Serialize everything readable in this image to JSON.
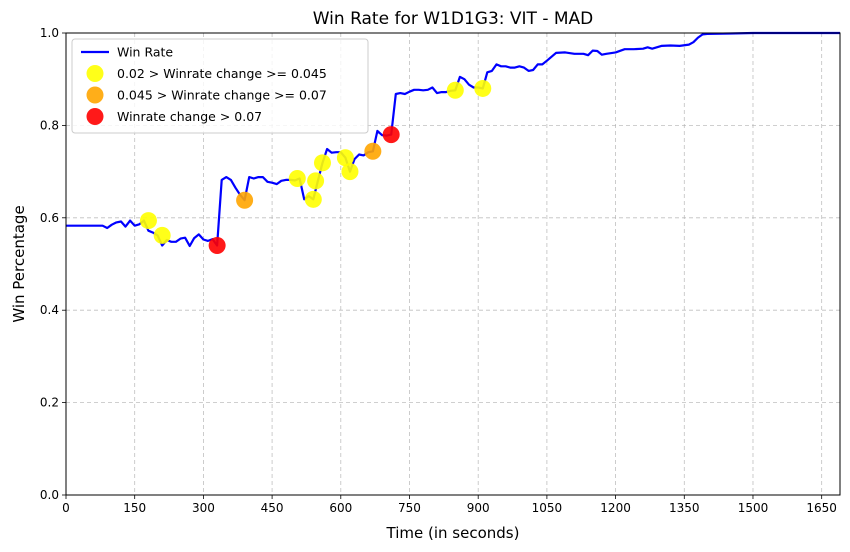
{
  "chart_data": {
    "type": "line",
    "title": "Win Rate for W1D1G3: VIT - MAD",
    "xlabel": "Time (in seconds)",
    "ylabel": "Win Percentage",
    "xlim": [
      0,
      1690
    ],
    "ylim": [
      0,
      1.0
    ],
    "xticks": [
      0,
      150,
      300,
      450,
      600,
      750,
      900,
      1050,
      1200,
      1350,
      1500,
      1650
    ],
    "yticks": [
      0.0,
      0.2,
      0.4,
      0.6,
      0.8,
      1.0
    ],
    "xtick_labels": [
      "0",
      "150",
      "300",
      "450",
      "600",
      "750",
      "900",
      "1050",
      "1200",
      "1350",
      "1500",
      "1650"
    ],
    "ytick_labels": [
      "0.0",
      "0.2",
      "0.4",
      "0.6",
      "0.8",
      "1.0"
    ],
    "grid": true,
    "legend_position": "top-left",
    "series": [
      {
        "name": "Win Rate",
        "color": "#0000ff",
        "x": [
          0,
          20,
          40,
          60,
          80,
          90,
          100,
          110,
          120,
          130,
          140,
          150,
          160,
          170,
          180,
          190,
          200,
          210,
          220,
          230,
          240,
          250,
          260,
          270,
          280,
          290,
          300,
          310,
          320,
          330,
          340,
          350,
          360,
          370,
          380,
          390,
          400,
          410,
          420,
          430,
          440,
          450,
          460,
          470,
          480,
          490,
          500,
          510,
          520,
          530,
          540,
          550,
          560,
          570,
          580,
          590,
          600,
          610,
          620,
          630,
          640,
          650,
          660,
          670,
          680,
          690,
          700,
          710,
          720,
          730,
          740,
          750,
          760,
          770,
          780,
          790,
          800,
          810,
          820,
          830,
          840,
          850,
          860,
          870,
          880,
          890,
          900,
          910,
          920,
          930,
          940,
          950,
          960,
          970,
          980,
          990,
          1000,
          1010,
          1020,
          1030,
          1040,
          1050,
          1070,
          1090,
          1110,
          1130,
          1140,
          1150,
          1160,
          1170,
          1180,
          1200,
          1220,
          1240,
          1260,
          1270,
          1280,
          1300,
          1320,
          1340,
          1360,
          1370,
          1380,
          1390,
          1400,
          1450,
          1500,
          1550,
          1600,
          1650,
          1690
        ],
        "y": [
          0.583,
          0.583,
          0.583,
          0.583,
          0.583,
          0.578,
          0.585,
          0.59,
          0.592,
          0.581,
          0.594,
          0.583,
          0.586,
          0.594,
          0.572,
          0.568,
          0.562,
          0.54,
          0.552,
          0.548,
          0.548,
          0.555,
          0.557,
          0.539,
          0.556,
          0.564,
          0.553,
          0.55,
          0.554,
          0.54,
          0.682,
          0.688,
          0.682,
          0.665,
          0.65,
          0.638,
          0.688,
          0.685,
          0.688,
          0.688,
          0.678,
          0.676,
          0.673,
          0.68,
          0.682,
          0.682,
          0.681,
          0.685,
          0.64,
          0.647,
          0.64,
          0.68,
          0.719,
          0.749,
          0.741,
          0.742,
          0.742,
          0.73,
          0.7,
          0.727,
          0.737,
          0.735,
          0.742,
          0.744,
          0.788,
          0.779,
          0.778,
          0.78,
          0.868,
          0.87,
          0.868,
          0.873,
          0.877,
          0.877,
          0.876,
          0.877,
          0.882,
          0.87,
          0.872,
          0.872,
          0.875,
          0.876,
          0.905,
          0.9,
          0.888,
          0.882,
          0.882,
          0.88,
          0.915,
          0.918,
          0.932,
          0.928,
          0.928,
          0.925,
          0.925,
          0.928,
          0.925,
          0.918,
          0.92,
          0.932,
          0.932,
          0.94,
          0.957,
          0.958,
          0.955,
          0.955,
          0.952,
          0.962,
          0.961,
          0.953,
          0.955,
          0.958,
          0.965,
          0.965,
          0.966,
          0.969,
          0.966,
          0.972,
          0.973,
          0.972,
          0.975,
          0.98,
          0.99,
          0.997,
          0.998,
          0.999,
          1.0,
          1.0,
          1.0,
          1.0,
          1.0
        ]
      }
    ],
    "markers": [
      {
        "name": " 0.02 > Winrate change >= 0.045",
        "color": "#ffff00",
        "points": [
          [
            180,
            0.594
          ],
          [
            210,
            0.562
          ],
          [
            505,
            0.685
          ],
          [
            540,
            0.64
          ],
          [
            545,
            0.68
          ],
          [
            560,
            0.719
          ],
          [
            610,
            0.73
          ],
          [
            620,
            0.7
          ],
          [
            850,
            0.876
          ],
          [
            910,
            0.88
          ]
        ]
      },
      {
        "name": "0.045 > Winrate change >= 0.07",
        "color": "#ffa500",
        "points": [
          [
            390,
            0.638
          ],
          [
            670,
            0.744
          ]
        ]
      },
      {
        "name": "Winrate change > 0.07",
        "color": "#ff0000",
        "points": [
          [
            330,
            0.54
          ],
          [
            710,
            0.78
          ]
        ]
      }
    ]
  }
}
